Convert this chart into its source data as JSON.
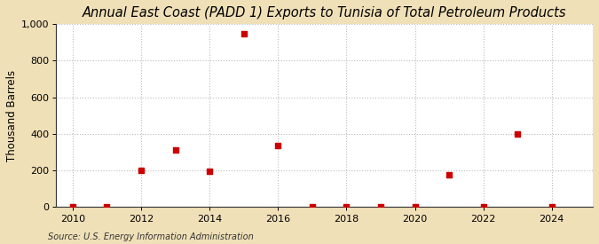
{
  "title": "Annual East Coast (PADD 1) Exports to Tunisia of Total Petroleum Products",
  "ylabel": "Thousand Barrels",
  "source": "Source: U.S. Energy Information Administration",
  "figure_bg_color": "#f0e0b8",
  "plot_bg_color": "#ffffff",
  "grid_color": "#bbbbbb",
  "marker_color": "#cc0000",
  "x_data": [
    2010,
    2011,
    2012,
    2013,
    2014,
    2015,
    2016,
    2017,
    2018,
    2019,
    2020,
    2021,
    2022,
    2023,
    2024
  ],
  "y_data": [
    1,
    2,
    200,
    310,
    195,
    950,
    335,
    2,
    2,
    2,
    2,
    175,
    2,
    400,
    2
  ],
  "xlim": [
    2009.5,
    2025.2
  ],
  "ylim": [
    0,
    1000
  ],
  "yticks": [
    0,
    200,
    400,
    600,
    800,
    1000
  ],
  "xticks": [
    2010,
    2012,
    2014,
    2016,
    2018,
    2020,
    2022,
    2024
  ],
  "title_fontsize": 10.5,
  "label_fontsize": 8.5,
  "tick_fontsize": 8,
  "source_fontsize": 7,
  "marker_size": 4
}
